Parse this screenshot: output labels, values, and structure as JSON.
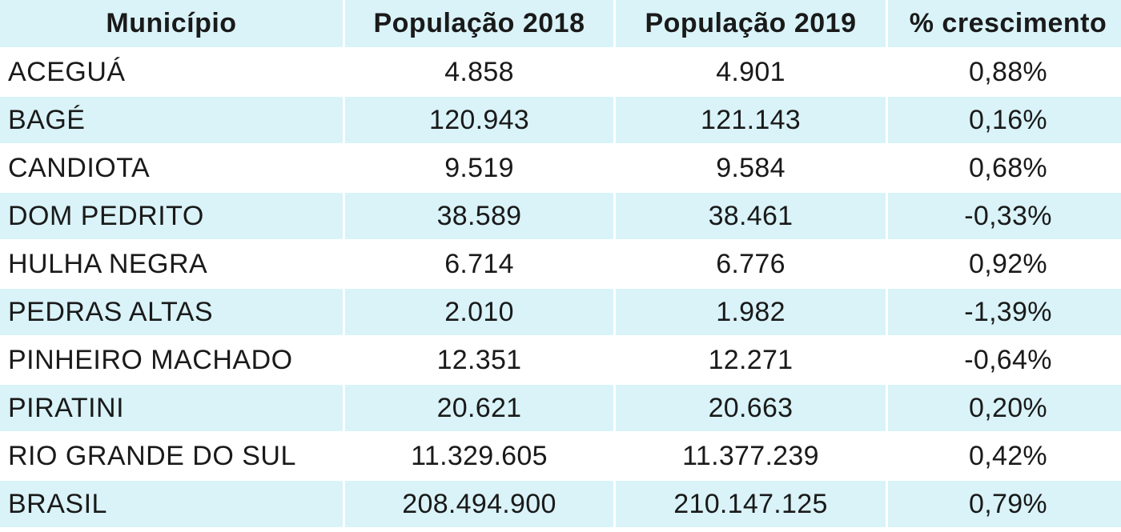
{
  "table": {
    "headers": [
      "Município",
      "População  2018",
      "População  2019",
      "% crescimento"
    ],
    "rows": [
      {
        "municipio": "ACEGUÁ",
        "pop2018": "4.858",
        "pop2019": "4.901",
        "crescimento": "0,88%"
      },
      {
        "municipio": "BAGÉ",
        "pop2018": "120.943",
        "pop2019": "121.143",
        "crescimento": "0,16%"
      },
      {
        "municipio": "CANDIOTA",
        "pop2018": "9.519",
        "pop2019": "9.584",
        "crescimento": "0,68%"
      },
      {
        "municipio": "DOM PEDRITO",
        "pop2018": "38.589",
        "pop2019": "38.461",
        "crescimento": "-0,33%"
      },
      {
        "municipio": "HULHA NEGRA",
        "pop2018": "6.714",
        "pop2019": "6.776",
        "crescimento": "0,92%"
      },
      {
        "municipio": "PEDRAS ALTAS",
        "pop2018": "2.010",
        "pop2019": "1.982",
        "crescimento": "-1,39%"
      },
      {
        "municipio": "PINHEIRO MACHADO",
        "pop2018": "12.351",
        "pop2019": "12.271",
        "crescimento": "-0,64%"
      },
      {
        "municipio": "PIRATINI",
        "pop2018": "20.621",
        "pop2019": "20.663",
        "crescimento": "0,20%"
      },
      {
        "municipio": "RIO GRANDE DO SUL",
        "pop2018": "11.329.605",
        "pop2019": "11.377.239",
        "crescimento": "0,42%"
      },
      {
        "municipio": "BRASIL",
        "pop2018": "208.494.900",
        "pop2019": "210.147.125",
        "crescimento": "0,79%"
      }
    ]
  },
  "colors": {
    "shaded_row": "#d9f3f8",
    "plain_row": "#ffffff",
    "text": "#1a1a1a"
  }
}
